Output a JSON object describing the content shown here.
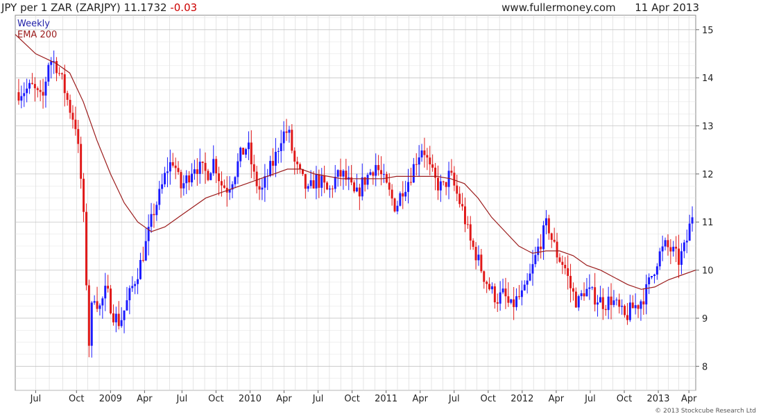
{
  "header": {
    "symbol_text": "JPY per 1 ZAR (ZARJPY) 11.1732",
    "change_text": "-0.03",
    "site": "www.fullermoney.com",
    "date": "11 Apr 2013"
  },
  "legend": {
    "weekly": "Weekly",
    "ema": "EMA 200"
  },
  "footer": {
    "copyright": "© 2013 Stockcube Research Ltd"
  },
  "colors": {
    "up": "#1a1aff",
    "down": "#e01818",
    "ema": "#9b1b1b",
    "grid": "#d4d4d4",
    "change": "#cc0000",
    "weekly_text": "#1f1fa8",
    "ema_text": "#9b1b1b"
  },
  "chart_data": {
    "type": "candlestick",
    "frequency": "weekly",
    "y_axis": {
      "ticks": [
        "8",
        "9",
        "10",
        "11",
        "12",
        "13",
        "14",
        "15"
      ],
      "ylim": [
        7.5,
        15.3
      ],
      "side": "right"
    },
    "x_axis": {
      "ticks": [
        {
          "label": "Jul",
          "t": 0.03
        },
        {
          "label": "Oct",
          "t": 0.09
        },
        {
          "label": "2009",
          "t": 0.14
        },
        {
          "label": "Apr",
          "t": 0.19
        },
        {
          "label": "Jul",
          "t": 0.245
        },
        {
          "label": "Oct",
          "t": 0.295
        },
        {
          "label": "2010",
          "t": 0.345
        },
        {
          "label": "Apr",
          "t": 0.395
        },
        {
          "label": "Jul",
          "t": 0.445
        },
        {
          "label": "Oct",
          "t": 0.495
        },
        {
          "label": "2011",
          "t": 0.545
        },
        {
          "label": "Apr",
          "t": 0.595
        },
        {
          "label": "Jul",
          "t": 0.645
        },
        {
          "label": "Oct",
          "t": 0.695
        },
        {
          "label": "2012",
          "t": 0.745
        },
        {
          "label": "Apr",
          "t": 0.795
        },
        {
          "label": "Jul",
          "t": 0.845
        },
        {
          "label": "Oct",
          "t": 0.895
        },
        {
          "label": "2013",
          "t": 0.945
        },
        {
          "label": "Apr",
          "t": 0.99
        }
      ]
    },
    "grid": true,
    "last_close": 11.1732,
    "change": -0.03,
    "price_path": [
      [
        0.0,
        13.7
      ],
      [
        0.02,
        13.8
      ],
      [
        0.035,
        13.5
      ],
      [
        0.045,
        14.4
      ],
      [
        0.055,
        14.3
      ],
      [
        0.065,
        13.9
      ],
      [
        0.075,
        13.4
      ],
      [
        0.085,
        13.0
      ],
      [
        0.095,
        11.5
      ],
      [
        0.1,
        9.9
      ],
      [
        0.105,
        8.3
      ],
      [
        0.11,
        9.6
      ],
      [
        0.12,
        9.2
      ],
      [
        0.13,
        9.6
      ],
      [
        0.14,
        9.1
      ],
      [
        0.15,
        8.9
      ],
      [
        0.16,
        9.3
      ],
      [
        0.17,
        9.7
      ],
      [
        0.18,
        10.1
      ],
      [
        0.19,
        10.6
      ],
      [
        0.2,
        11.2
      ],
      [
        0.21,
        11.6
      ],
      [
        0.22,
        12.1
      ],
      [
        0.23,
        12.3
      ],
      [
        0.24,
        11.7
      ],
      [
        0.25,
        11.9
      ],
      [
        0.26,
        12.2
      ],
      [
        0.27,
        12.1
      ],
      [
        0.28,
        12.0
      ],
      [
        0.29,
        12.3
      ],
      [
        0.3,
        11.8
      ],
      [
        0.31,
        11.7
      ],
      [
        0.32,
        12.0
      ],
      [
        0.33,
        12.4
      ],
      [
        0.34,
        12.6
      ],
      [
        0.35,
        11.9
      ],
      [
        0.36,
        11.6
      ],
      [
        0.37,
        12.0
      ],
      [
        0.38,
        12.3
      ],
      [
        0.39,
        12.8
      ],
      [
        0.4,
        12.9
      ],
      [
        0.41,
        12.2
      ],
      [
        0.42,
        11.9
      ],
      [
        0.43,
        11.6
      ],
      [
        0.44,
        11.9
      ],
      [
        0.45,
        11.8
      ],
      [
        0.46,
        11.6
      ],
      [
        0.47,
        11.9
      ],
      [
        0.48,
        12.0
      ],
      [
        0.49,
        11.8
      ],
      [
        0.5,
        11.5
      ],
      [
        0.51,
        11.8
      ],
      [
        0.52,
        12.0
      ],
      [
        0.53,
        12.2
      ],
      [
        0.54,
        11.9
      ],
      [
        0.55,
        11.6
      ],
      [
        0.56,
        11.3
      ],
      [
        0.57,
        11.7
      ],
      [
        0.58,
        11.9
      ],
      [
        0.59,
        12.3
      ],
      [
        0.6,
        12.6
      ],
      [
        0.61,
        12.1
      ],
      [
        0.62,
        11.8
      ],
      [
        0.63,
        11.7
      ],
      [
        0.64,
        12.0
      ],
      [
        0.65,
        11.6
      ],
      [
        0.66,
        11.2
      ],
      [
        0.67,
        10.6
      ],
      [
        0.68,
        10.3
      ],
      [
        0.69,
        9.9
      ],
      [
        0.7,
        9.6
      ],
      [
        0.71,
        9.4
      ],
      [
        0.72,
        9.5
      ],
      [
        0.73,
        9.2
      ],
      [
        0.74,
        9.4
      ],
      [
        0.75,
        9.5
      ],
      [
        0.76,
        9.9
      ],
      [
        0.77,
        10.4
      ],
      [
        0.78,
        10.8
      ],
      [
        0.785,
        11.0
      ],
      [
        0.79,
        10.7
      ],
      [
        0.8,
        10.3
      ],
      [
        0.81,
        10.1
      ],
      [
        0.82,
        9.6
      ],
      [
        0.83,
        9.3
      ],
      [
        0.84,
        9.6
      ],
      [
        0.85,
        9.5
      ],
      [
        0.86,
        9.4
      ],
      [
        0.87,
        9.3
      ],
      [
        0.88,
        9.4
      ],
      [
        0.89,
        9.2
      ],
      [
        0.9,
        9.0
      ],
      [
        0.91,
        9.2
      ],
      [
        0.92,
        9.3
      ],
      [
        0.93,
        9.5
      ],
      [
        0.94,
        9.9
      ],
      [
        0.95,
        10.3
      ],
      [
        0.96,
        10.5
      ],
      [
        0.97,
        10.4
      ],
      [
        0.98,
        10.2
      ],
      [
        0.99,
        10.5
      ],
      [
        1.0,
        11.17
      ]
    ],
    "ema_path": [
      [
        0.0,
        14.9
      ],
      [
        0.03,
        14.5
      ],
      [
        0.06,
        14.3
      ],
      [
        0.08,
        14.1
      ],
      [
        0.1,
        13.5
      ],
      [
        0.12,
        12.7
      ],
      [
        0.14,
        12.0
      ],
      [
        0.16,
        11.4
      ],
      [
        0.18,
        11.0
      ],
      [
        0.2,
        10.8
      ],
      [
        0.22,
        10.9
      ],
      [
        0.24,
        11.1
      ],
      [
        0.26,
        11.3
      ],
      [
        0.28,
        11.5
      ],
      [
        0.3,
        11.6
      ],
      [
        0.32,
        11.7
      ],
      [
        0.34,
        11.8
      ],
      [
        0.36,
        11.9
      ],
      [
        0.38,
        12.0
      ],
      [
        0.4,
        12.1
      ],
      [
        0.42,
        12.1
      ],
      [
        0.44,
        12.0
      ],
      [
        0.46,
        11.95
      ],
      [
        0.48,
        11.9
      ],
      [
        0.5,
        11.9
      ],
      [
        0.52,
        11.9
      ],
      [
        0.54,
        11.9
      ],
      [
        0.56,
        11.95
      ],
      [
        0.58,
        11.95
      ],
      [
        0.6,
        11.95
      ],
      [
        0.62,
        11.95
      ],
      [
        0.64,
        11.9
      ],
      [
        0.66,
        11.8
      ],
      [
        0.68,
        11.5
      ],
      [
        0.7,
        11.1
      ],
      [
        0.72,
        10.8
      ],
      [
        0.74,
        10.5
      ],
      [
        0.76,
        10.35
      ],
      [
        0.78,
        10.4
      ],
      [
        0.8,
        10.4
      ],
      [
        0.82,
        10.3
      ],
      [
        0.84,
        10.1
      ],
      [
        0.86,
        10.0
      ],
      [
        0.88,
        9.85
      ],
      [
        0.9,
        9.7
      ],
      [
        0.92,
        9.6
      ],
      [
        0.94,
        9.65
      ],
      [
        0.96,
        9.8
      ],
      [
        0.98,
        9.9
      ],
      [
        1.0,
        10.0
      ]
    ]
  }
}
